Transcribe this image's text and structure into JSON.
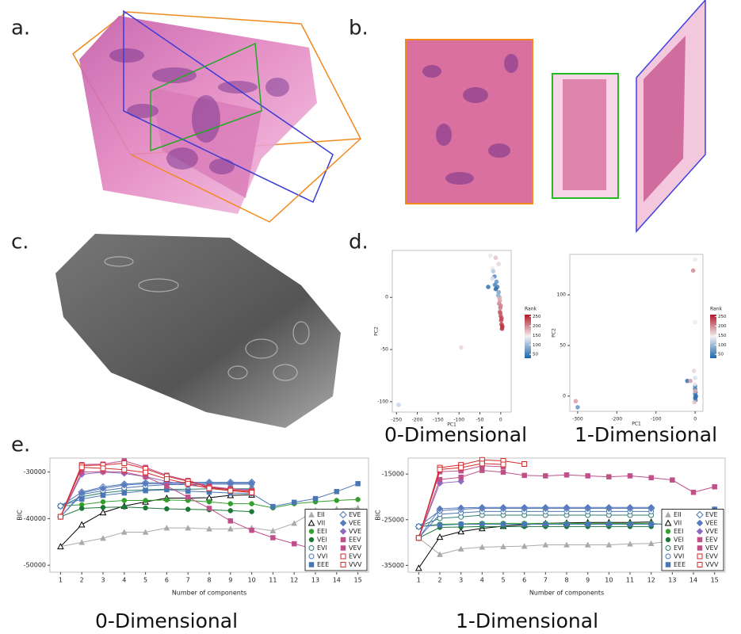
{
  "panels": {
    "labels": [
      "a.",
      "b.",
      "c.",
      "d.",
      "e."
    ]
  },
  "chart_data": [
    {
      "type": "scatter",
      "caption": "0-Dimensional",
      "x_label": "PC1",
      "y_label": "PC2",
      "xlim": [
        -260,
        25
      ],
      "xticks": [
        -250,
        -200,
        -150,
        -100,
        -50,
        0
      ],
      "ylim": [
        -110,
        45
      ],
      "yticks": [
        -100,
        -50,
        0
      ],
      "colorbar_title": "Rank",
      "colorbar_lim": [
        30,
        260
      ],
      "colorbar_ticks": [
        50,
        100,
        150,
        200,
        250
      ],
      "x": [
        -245,
        -95,
        -25,
        -12,
        -5,
        -20,
        -30,
        -15,
        -10,
        -8,
        -12,
        -5,
        -3,
        -2,
        -4,
        -1,
        -2,
        0,
        1,
        2,
        3,
        -6,
        -14,
        -20,
        -3,
        0,
        -1,
        2,
        4,
        -18
      ],
      "values": [
        -103,
        -48,
        40,
        38,
        32,
        28,
        10,
        20,
        15,
        10,
        8,
        5,
        0,
        -3,
        -6,
        -10,
        -14,
        -18,
        -22,
        -26,
        -30,
        2,
        12,
        18,
        -1,
        -8,
        -15,
        -20,
        -28,
        25
      ],
      "rank": [
        120,
        160,
        150,
        170,
        160,
        140,
        40,
        60,
        70,
        50,
        30,
        80,
        100,
        190,
        200,
        210,
        220,
        230,
        240,
        245,
        250,
        90,
        55,
        130,
        180,
        205,
        225,
        235,
        248,
        110
      ]
    },
    {
      "type": "scatter",
      "caption": "1-Dimensional",
      "x_label": "PC1",
      "y_label": "PC2",
      "xlim": [
        -320,
        20
      ],
      "xticks": [
        -300,
        -200,
        -100,
        0
      ],
      "ylim": [
        -15,
        140
      ],
      "yticks": [
        0,
        50,
        100
      ],
      "colorbar_title": "Rank",
      "colorbar_lim": [
        30,
        260
      ],
      "colorbar_ticks": [
        50,
        100,
        150,
        200,
        250
      ],
      "x": [
        -305,
        -300,
        0,
        -5,
        0,
        -3,
        -20,
        -12,
        0,
        0,
        1,
        0,
        2,
        0,
        1,
        -2,
        0,
        -1,
        0,
        1
      ],
      "values": [
        -5,
        -11,
        135,
        124,
        73,
        25,
        15,
        15,
        10,
        7,
        4,
        2,
        0,
        -2,
        -4,
        -6,
        5,
        12,
        18,
        -1
      ],
      "rank": [
        190,
        70,
        150,
        200,
        140,
        160,
        40,
        190,
        60,
        50,
        45,
        55,
        40,
        65,
        50,
        170,
        180,
        150,
        130,
        35
      ]
    },
    {
      "type": "line",
      "caption": "0-Dimensional",
      "x_label": "Number of components",
      "y_label": "BIC",
      "x": [
        1,
        2,
        3,
        4,
        5,
        6,
        7,
        8,
        9,
        10,
        11,
        12,
        13,
        14,
        15
      ],
      "xlim": [
        0.5,
        15.5
      ],
      "xticks": [
        1,
        2,
        3,
        4,
        5,
        6,
        7,
        8,
        9,
        10,
        11,
        12,
        13,
        14,
        15
      ],
      "ylim": [
        -51500,
        -27000
      ],
      "yticks": [
        -50000,
        -40000,
        -30000
      ],
      "series": [
        {
          "name": "EII",
          "color": "#aaaaaa",
          "marker": "triangle",
          "values": [
            -46000,
            -45100,
            -44200,
            -42900,
            -42900,
            -42000,
            -42000,
            -42200,
            -42200,
            -42000,
            -42600,
            -41000,
            -38200,
            -37900,
            -37700
          ]
        },
        {
          "name": "VII",
          "color": "#000000",
          "marker": "triangle-open",
          "values": [
            -46000,
            -41300,
            -38700,
            -37300,
            -36400,
            -35600,
            -35600,
            -35500,
            -35000,
            -34900,
            null,
            null,
            null,
            null,
            null
          ]
        },
        {
          "name": "EEI",
          "color": "#33a02c",
          "marker": "circle",
          "values": [
            -37300,
            -37000,
            -36400,
            -36100,
            -36100,
            -36000,
            -36100,
            -36400,
            -36800,
            -36800,
            -37700,
            -36800,
            -36400,
            -36100,
            -35900
          ]
        },
        {
          "name": "VEI",
          "color": "#1b7837",
          "marker": "circle",
          "values": [
            -39600,
            -37800,
            -37600,
            -37500,
            -37700,
            -37900,
            -38000,
            -38100,
            -38300,
            -38500,
            null,
            null,
            null,
            null,
            null
          ]
        },
        {
          "name": "EVI",
          "color": "#2f7f6f",
          "marker": "circle-open",
          "values": [
            -37300,
            -35300,
            -34500,
            -34000,
            -33800,
            -33700,
            -33700,
            -33600,
            -33600,
            -33600,
            null,
            null,
            null,
            null,
            null
          ]
        },
        {
          "name": "VVI",
          "color": "#4a77b4",
          "marker": "circle-open",
          "values": [
            -39600,
            -34800,
            -34000,
            -33400,
            -33000,
            -32700,
            -32700,
            -32600,
            -32600,
            -32600,
            null,
            null,
            null,
            null,
            null
          ]
        },
        {
          "name": "EEE",
          "color": "#4a77b4",
          "marker": "square",
          "values": [
            -37300,
            -35800,
            -35000,
            -34500,
            -34000,
            -33800,
            -34100,
            -34300,
            -34500,
            -34600,
            -37400,
            -36500,
            -35700,
            -34200,
            -32500
          ]
        },
        {
          "name": "EVE",
          "color": "#4a77b4",
          "marker": "diamond-open",
          "values": [
            -37300,
            -34300,
            -33200,
            -32600,
            -32300,
            -32300,
            -32200,
            -32200,
            -32200,
            -32200,
            null,
            null,
            null,
            null,
            null
          ]
        },
        {
          "name": "VEE",
          "color": "#5a7bbf",
          "marker": "diamond",
          "values": [
            -39600,
            -34500,
            -33500,
            -32800,
            -32500,
            -32500,
            -32400,
            -32400,
            -32400,
            -32400,
            null,
            null,
            null,
            null,
            null
          ]
        },
        {
          "name": "VVE",
          "color": "#8e6bbf",
          "marker": "diamond",
          "values": [
            -39600,
            -30500,
            -30000,
            -30300,
            -31000,
            -32000,
            -32800,
            -33300,
            -33600,
            -33800,
            null,
            null,
            null,
            null,
            null
          ]
        },
        {
          "name": "EEV",
          "color": "#c0508a",
          "marker": "square",
          "values": [
            -39600,
            -30000,
            -29900,
            -30000,
            -31000,
            -33000,
            -35400,
            -37800,
            -40500,
            -42500,
            -44100,
            -45400,
            -46600,
            -48000,
            -50400
          ]
        },
        {
          "name": "VEV",
          "color": "#c0508a",
          "marker": "square",
          "values": [
            -39600,
            -28400,
            -28300,
            -27600,
            -29000,
            -30700,
            -31800,
            -33100,
            -33600,
            -34000,
            null,
            null,
            null,
            null,
            null
          ]
        },
        {
          "name": "EVV",
          "color": "#d62728",
          "marker": "square-open",
          "values": [
            -39600,
            -28600,
            -28500,
            -28100,
            -29300,
            -30900,
            -32000,
            -33300,
            -33800,
            -34200,
            null,
            null,
            null,
            null,
            null
          ]
        },
        {
          "name": "VVV",
          "color": "#d62728",
          "marker": "square-open",
          "values": [
            -39600,
            -29000,
            -29200,
            -29500,
            -30100,
            -31500,
            -32500,
            -33500,
            -34000,
            -34400,
            null,
            null,
            null,
            null,
            null
          ]
        }
      ]
    },
    {
      "type": "line",
      "caption": "1-Dimensional",
      "x_label": "Number of components",
      "y_label": "BIC",
      "x": [
        1,
        2,
        3,
        4,
        5,
        6,
        7,
        8,
        9,
        10,
        11,
        12,
        13,
        14,
        15
      ],
      "xlim": [
        0.5,
        15.5
      ],
      "xticks": [
        1,
        2,
        3,
        4,
        5,
        6,
        7,
        8,
        9,
        10,
        11,
        12,
        13,
        14,
        15
      ],
      "ylim": [
        -36500,
        -11500
      ],
      "yticks": [
        -35000,
        -25000,
        -15000
      ],
      "series": [
        {
          "name": "EII",
          "color": "#aaaaaa",
          "marker": "triangle",
          "values": [
            -29000,
            -32600,
            -31400,
            -31000,
            -30900,
            -30800,
            -30500,
            -30500,
            -30500,
            -30500,
            -30300,
            -30200,
            -29700,
            -28300,
            -27000
          ]
        },
        {
          "name": "VII",
          "color": "#000000",
          "marker": "triangle-open",
          "values": [
            -35600,
            -28800,
            -27600,
            -26900,
            -26400,
            -26100,
            -25800,
            -25700,
            -25600,
            -25600,
            -25600,
            -25500,
            null,
            null,
            null
          ]
        },
        {
          "name": "EEI",
          "color": "#33a02c",
          "marker": "circle",
          "values": [
            -26500,
            -26000,
            -25900,
            -25800,
            -25800,
            -25800,
            -25800,
            -25800,
            -25800,
            -25800,
            -25800,
            -25800,
            -26200,
            -25500,
            -24500
          ]
        },
        {
          "name": "VEI",
          "color": "#1b7837",
          "marker": "circle",
          "values": [
            -29000,
            -26700,
            -26600,
            -26500,
            -26500,
            -26500,
            -26500,
            -26500,
            -26500,
            -26500,
            -26500,
            -26500,
            null,
            null,
            null
          ]
        },
        {
          "name": "EVI",
          "color": "#2f7f6f",
          "marker": "circle-open",
          "values": [
            -26500,
            -24700,
            -24400,
            -24000,
            -24000,
            -24000,
            -24000,
            -24000,
            -24000,
            -24000,
            -24000,
            -24000,
            null,
            null,
            null
          ]
        },
        {
          "name": "VVI",
          "color": "#4a77b4",
          "marker": "circle-open",
          "values": [
            -29000,
            -23800,
            -23500,
            -23200,
            -23200,
            -23200,
            -23200,
            -23200,
            -23200,
            -23200,
            -23200,
            -23200,
            null,
            null,
            null
          ]
        },
        {
          "name": "EEE",
          "color": "#4a77b4",
          "marker": "square",
          "values": [
            -26500,
            -26200,
            -26000,
            -26000,
            -26000,
            -26000,
            -26000,
            -26000,
            -26000,
            -26000,
            -26000,
            -26000,
            -25900,
            -24500,
            -22700
          ]
        },
        {
          "name": "EVE",
          "color": "#4a77b4",
          "marker": "diamond-open",
          "values": [
            -26500,
            -23000,
            -22700,
            -22500,
            -22500,
            -22500,
            -22500,
            -22500,
            -22500,
            -22500,
            -22500,
            -22500,
            null,
            null,
            null
          ]
        },
        {
          "name": "VEE",
          "color": "#5a7bbf",
          "marker": "diamond",
          "values": [
            -29000,
            -22600,
            -22400,
            -22300,
            -22300,
            -22300,
            -22300,
            -22300,
            -22300,
            -22300,
            -22300,
            -22300,
            null,
            null,
            null
          ]
        },
        {
          "name": "VVE",
          "color": "#8e6bbf",
          "marker": "diamond",
          "values": [
            -29000,
            -17000,
            -16600,
            null,
            null,
            null,
            null,
            null,
            null,
            null,
            null,
            null,
            null,
            null,
            null
          ]
        },
        {
          "name": "EEV",
          "color": "#c0508a",
          "marker": "square",
          "values": [
            -29000,
            -16200,
            -15700,
            -14200,
            -14600,
            -15300,
            -15400,
            -15200,
            -15400,
            -15600,
            -15400,
            -15800,
            -16300,
            -19000,
            -17800
          ]
        },
        {
          "name": "VEV",
          "color": "#c0508a",
          "marker": "square",
          "values": [
            -29000,
            -14500,
            -14300,
            -13200,
            -13400,
            null,
            null,
            null,
            null,
            null,
            null,
            null,
            null,
            null,
            null
          ]
        },
        {
          "name": "EVV",
          "color": "#d62728",
          "marker": "square-open",
          "values": [
            -29000,
            -13600,
            -13000,
            -11900,
            -12100,
            -12800,
            null,
            null,
            null,
            null,
            null,
            null,
            null,
            null,
            null
          ]
        },
        {
          "name": "VVV",
          "color": "#d62728",
          "marker": "square-open",
          "values": [
            -29000,
            -14000,
            -13600,
            -12700,
            -12900,
            null,
            null,
            null,
            null,
            null,
            null,
            null,
            null,
            null,
            null
          ]
        }
      ]
    }
  ]
}
